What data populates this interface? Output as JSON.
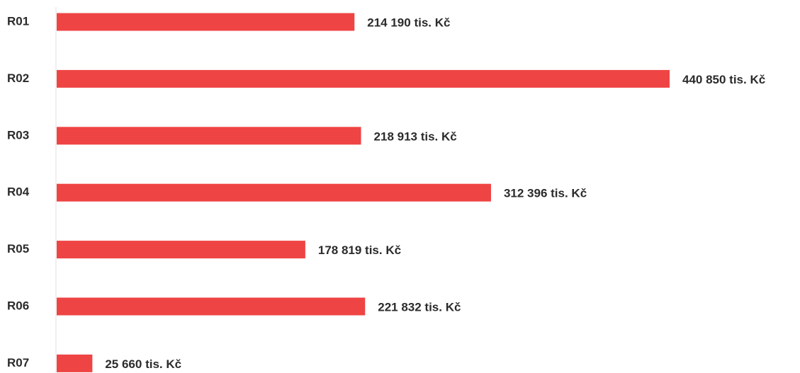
{
  "chart_data": {
    "type": "hbar",
    "categories": [
      "R01",
      "R02",
      "R03",
      "R04",
      "R05",
      "R06",
      "R07"
    ],
    "values": [
      214190,
      440850,
      218913,
      312396,
      178819,
      221832,
      25660
    ],
    "value_labels": [
      "214 190 tis. Kč",
      "440 850 tis. Kč",
      "218 913 tis. Kč",
      "312 396 tis. Kč",
      "178 819 tis. Kč",
      "221 832 tis. Kč",
      "25 660 tis. Kč"
    ],
    "color": "#ef4444"
  }
}
